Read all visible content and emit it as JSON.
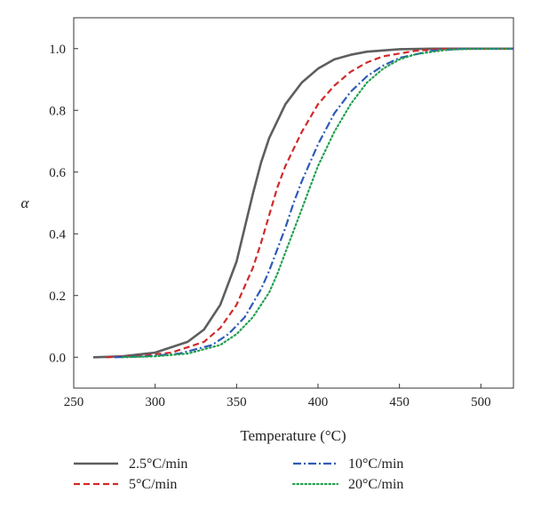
{
  "chart_data": {
    "type": "line",
    "xlabel": "Temperature (°C)",
    "ylabel": "α",
    "xlim": [
      250,
      520
    ],
    "ylim": [
      -0.1,
      1.1
    ],
    "x_ticks": [
      250,
      300,
      350,
      400,
      450,
      500
    ],
    "y_ticks": [
      0.0,
      0.2,
      0.4,
      0.6,
      0.8,
      1.0
    ],
    "x_tick_labels": [
      "250",
      "300",
      "350",
      "400",
      "450",
      "500"
    ],
    "y_tick_labels": [
      "0.0",
      "0.2",
      "0.4",
      "0.6",
      "0.8",
      "1.0"
    ],
    "grid": false,
    "legend_position": "bottom",
    "series": [
      {
        "name": "2.5°C/min",
        "color": "#5e5e5e",
        "dash": "solid",
        "x": [
          262,
          280,
          300,
          320,
          330,
          340,
          350,
          355,
          360,
          365,
          370,
          380,
          390,
          400,
          410,
          420,
          430,
          450,
          470,
          500,
          520
        ],
        "y": [
          0.0,
          0.003,
          0.015,
          0.05,
          0.09,
          0.17,
          0.31,
          0.42,
          0.53,
          0.63,
          0.71,
          0.82,
          0.89,
          0.935,
          0.965,
          0.98,
          0.99,
          0.998,
          1.0,
          1.0,
          1.0
        ]
      },
      {
        "name": "5°C/min",
        "color": "#d12a2a",
        "dash": "dashed",
        "x": [
          270,
          290,
          310,
          330,
          340,
          350,
          360,
          365,
          370,
          375,
          380,
          390,
          400,
          410,
          420,
          430,
          440,
          460,
          480,
          500,
          520
        ],
        "y": [
          0.0,
          0.004,
          0.015,
          0.05,
          0.095,
          0.17,
          0.29,
          0.37,
          0.46,
          0.55,
          0.62,
          0.73,
          0.82,
          0.88,
          0.925,
          0.955,
          0.975,
          0.993,
          1.0,
          1.0,
          1.0
        ]
      },
      {
        "name": "10°C/min",
        "color": "#2e5bb8",
        "dash": "dashdot",
        "x": [
          275,
          295,
          315,
          335,
          345,
          355,
          365,
          370,
          375,
          380,
          385,
          390,
          400,
          410,
          420,
          430,
          440,
          450,
          470,
          490,
          520
        ],
        "y": [
          0.0,
          0.003,
          0.012,
          0.04,
          0.075,
          0.13,
          0.22,
          0.28,
          0.35,
          0.42,
          0.5,
          0.57,
          0.69,
          0.79,
          0.86,
          0.91,
          0.945,
          0.97,
          0.993,
          1.0,
          1.0
        ]
      },
      {
        "name": "20°C/min",
        "color": "#22a050",
        "dash": "dotted",
        "x": [
          280,
          300,
          320,
          340,
          350,
          360,
          370,
          375,
          380,
          385,
          390,
          395,
          400,
          410,
          420,
          430,
          440,
          450,
          460,
          480,
          500,
          520
        ],
        "y": [
          0.0,
          0.003,
          0.012,
          0.04,
          0.075,
          0.13,
          0.21,
          0.27,
          0.34,
          0.41,
          0.48,
          0.55,
          0.62,
          0.73,
          0.82,
          0.89,
          0.935,
          0.965,
          0.982,
          0.997,
          1.0,
          1.0
        ]
      }
    ]
  }
}
